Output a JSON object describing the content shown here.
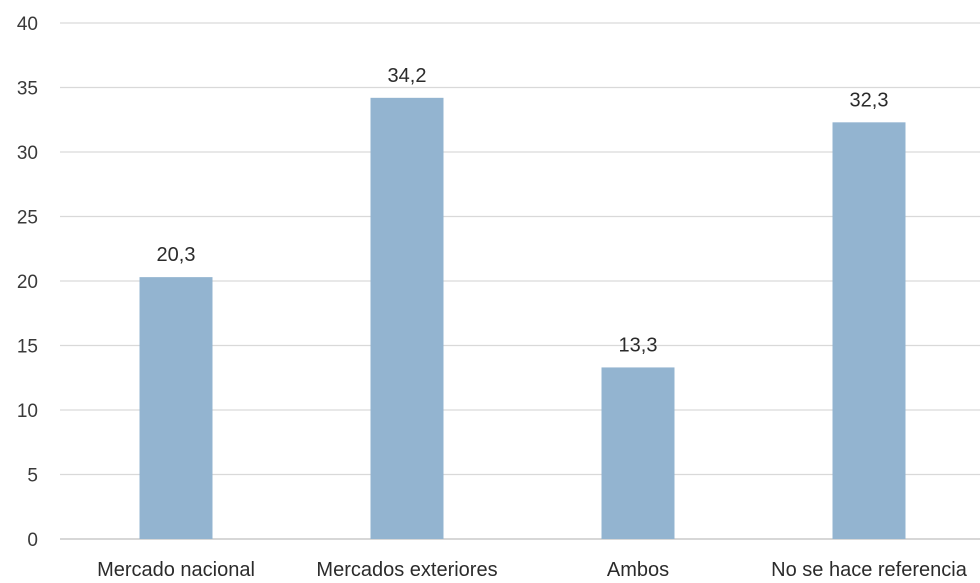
{
  "chart_data": {
    "type": "bar",
    "categories": [
      "Mercado nacional",
      "Mercados exteriores",
      "Ambos",
      "No se hace referencia"
    ],
    "values": [
      20.3,
      34.2,
      13.3,
      32.3
    ],
    "data_labels": [
      "20,3",
      "34,2",
      "13,3",
      "32,3"
    ],
    "title": "",
    "xlabel": "",
    "ylabel": "",
    "ylim": [
      0,
      40
    ],
    "yticks": [
      0,
      5,
      10,
      15,
      20,
      25,
      30,
      35,
      40
    ],
    "grid": true,
    "legend": "none",
    "bar_color": "#93b4d0",
    "grid_color": "#d9d9d9",
    "axis_color": "#bfbfbf"
  }
}
